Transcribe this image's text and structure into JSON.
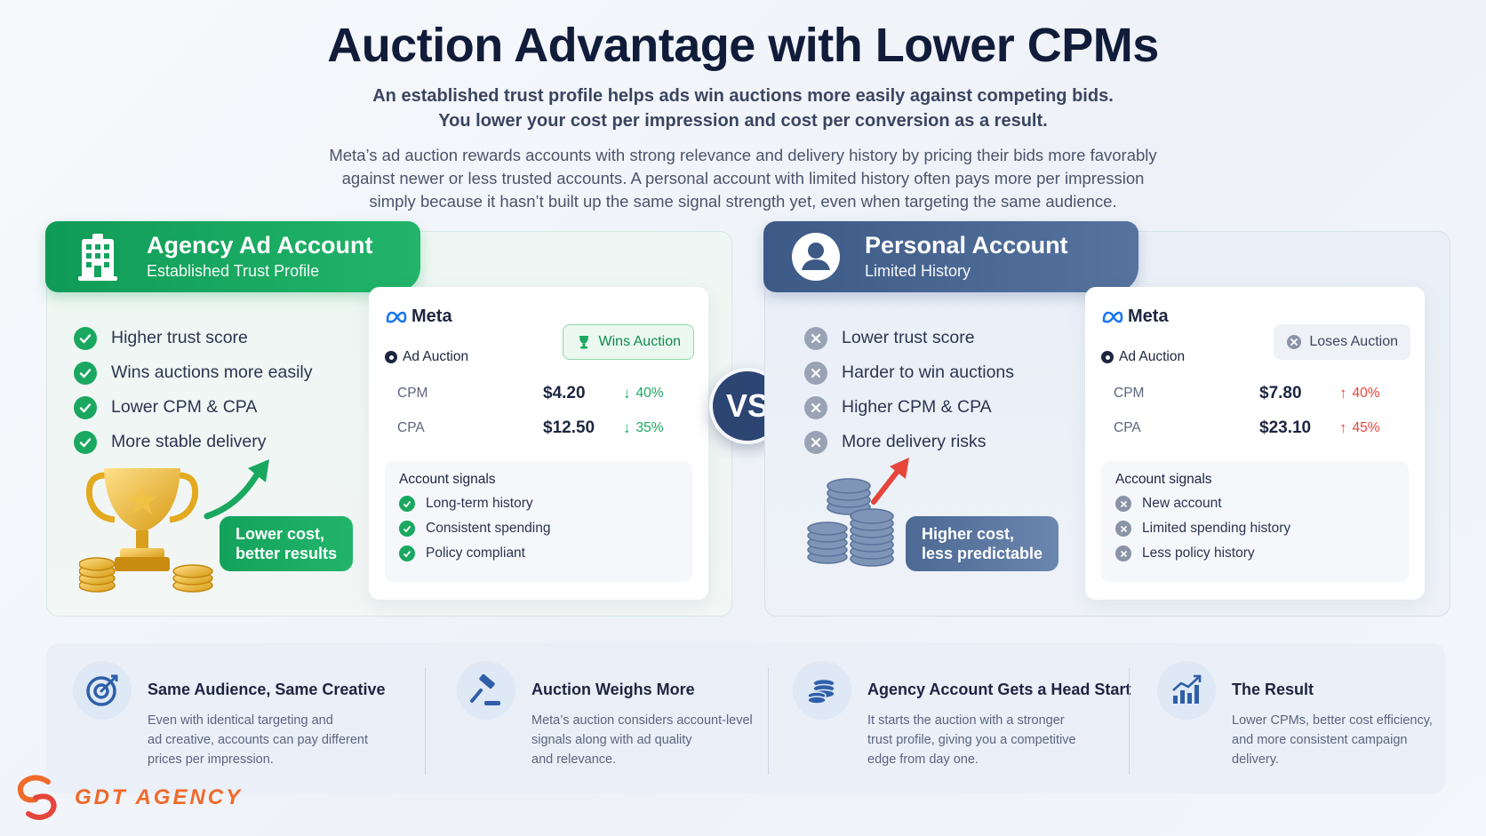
{
  "header": {
    "title": "Auction Advantage with Lower CPMs",
    "subtitle_line1": "An established trust profile helps ads win auctions more easily against competing bids.",
    "subtitle_line2": "You lower your cost per impression and cost per conversion as a result.",
    "desc_line1": "Meta’s ad auction rewards accounts with strong relevance and delivery history by pricing their bids more favorably",
    "desc_line2": "against newer or less trusted accounts. A personal account with limited history often pays more per impression",
    "desc_line3": "simply because it hasn’t built up the same signal strength yet, even when targeting the same audience."
  },
  "agency": {
    "title": "Agency Ad Account",
    "subtitle": "Established Trust Profile",
    "color": "#1aa860",
    "points": [
      "Higher trust score",
      "Wins auctions more easily",
      "Lower CPM & CPA",
      "More stable delivery"
    ],
    "meta_label": "Meta",
    "auction_label": "Ad Auction",
    "badge": "Wins Auction",
    "metrics": [
      {
        "name": "CPM",
        "value": "$4.20",
        "delta": "40%",
        "direction": "down"
      },
      {
        "name": "CPA",
        "value": "$12.50",
        "delta": "35%",
        "direction": "down"
      }
    ],
    "signals_title": "Account signals",
    "signals": [
      "Long-term history",
      "Consistent spending",
      "Policy compliant"
    ],
    "callout_line1": "Lower cost,",
    "callout_line2": "better results"
  },
  "personal": {
    "title": "Personal Account",
    "subtitle": "Limited History",
    "color": "#3d5a86",
    "points": [
      "Lower trust score",
      "Harder to win auctions",
      "Higher CPM & CPA",
      "More delivery risks"
    ],
    "meta_label": "Meta",
    "auction_label": "Ad Auction",
    "badge": "Loses Auction",
    "metrics": [
      {
        "name": "CPM",
        "value": "$7.80",
        "delta": "40%",
        "direction": "up"
      },
      {
        "name": "CPA",
        "value": "$23.10",
        "delta": "45%",
        "direction": "up"
      }
    ],
    "signals_title": "Account signals",
    "signals": [
      "New account",
      "Limited spending history",
      "Less policy history"
    ],
    "callout_line1": "Higher cost,",
    "callout_line2": "less predictable"
  },
  "vs_label": "VS",
  "features": [
    {
      "icon": "target-icon",
      "title": "Same Audience, Same Creative",
      "body": [
        "Even with identical targeting and",
        "ad creative, accounts can pay different",
        "prices per impression."
      ]
    },
    {
      "icon": "gavel-icon",
      "title": "Auction Weighs More",
      "body": [
        "Meta’s auction considers account-level",
        "signals along with ad quality",
        "and relevance."
      ]
    },
    {
      "icon": "coins-icon",
      "title": "Agency Account Gets a Head Start",
      "body": [
        "It starts the auction with a stronger",
        "trust profile, giving you a competitive",
        "edge from day one."
      ]
    },
    {
      "icon": "growth-chart-icon",
      "title": "The Result",
      "body": [
        "Lower CPMs, better cost efficiency,",
        "and more consistent campaign",
        "delivery."
      ]
    }
  ],
  "brand": {
    "name": "GDT AGENCY",
    "color": "#f06a2a"
  }
}
